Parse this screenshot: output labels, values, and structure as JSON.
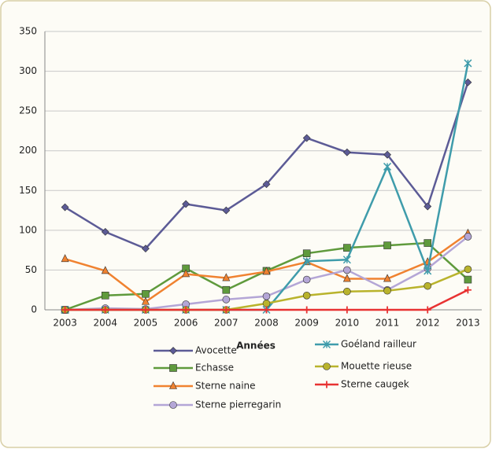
{
  "chart_data": {
    "type": "line",
    "xlabel": "Années",
    "categories": [
      "2003",
      "2004",
      "2005",
      "2006",
      "2007",
      "2008",
      "2009",
      "2010",
      "2011",
      "2012",
      "2013"
    ],
    "ylim": [
      0,
      350
    ],
    "yticks": [
      0,
      50,
      100,
      150,
      200,
      250,
      300,
      350
    ],
    "grid": true,
    "series": [
      {
        "name": "Avocette",
        "color": "#5c5b96",
        "marker": "diamond",
        "values": [
          129,
          98,
          77,
          133,
          125,
          158,
          216,
          198,
          195,
          130,
          286
        ]
      },
      {
        "name": "Echasse",
        "color": "#5f9a3c",
        "marker": "square",
        "values": [
          0,
          18,
          20,
          52,
          25,
          49,
          71,
          78,
          81,
          84,
          38
        ]
      },
      {
        "name": "Sterne naine",
        "color": "#f08230",
        "marker": "triangle",
        "values": [
          64,
          49,
          10,
          45,
          40,
          48,
          60,
          39,
          39,
          60,
          96
        ]
      },
      {
        "name": "Sterne pierregarin",
        "color": "#b4a6d6",
        "marker": "circle",
        "values": [
          0,
          2,
          1,
          7,
          13,
          17,
          38,
          50,
          25,
          52,
          92
        ]
      },
      {
        "name": "Goéland railleur",
        "color": "#3f9cab",
        "marker": "star",
        "values": [
          0,
          0,
          0,
          0,
          0,
          0,
          61,
          63,
          180,
          49,
          310
        ]
      },
      {
        "name": "Mouette rieuse",
        "color": "#b9b32c",
        "marker": "circle",
        "values": [
          0,
          0,
          0,
          0,
          0,
          8,
          18,
          23,
          24,
          30,
          51
        ]
      },
      {
        "name": "Sterne caugek",
        "color": "#e83232",
        "marker": "plus",
        "values": [
          0,
          0,
          0,
          0,
          0,
          0,
          0,
          0,
          0,
          0,
          25
        ]
      }
    ]
  }
}
